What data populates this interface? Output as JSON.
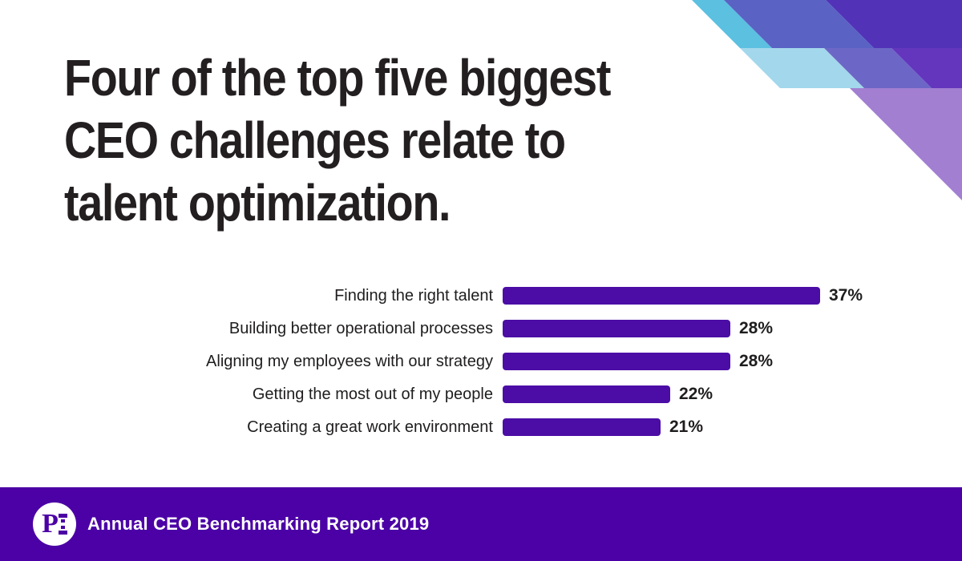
{
  "title": {
    "lines": [
      "Four of the top five biggest",
      "CEO challenges relate to",
      "talent optimization."
    ],
    "color": "#231f20"
  },
  "chart_data": {
    "type": "bar",
    "orientation": "horizontal",
    "title": "Four of the top five biggest CEO challenges relate to talent optimization.",
    "categories": [
      "Finding the right talent",
      "Building better operational processes",
      "Aligning my employees with our strategy",
      "Getting the most out of my people",
      "Creating a great work environment"
    ],
    "values": [
      37,
      28,
      28,
      22,
      21
    ],
    "value_labels": [
      "37%",
      "28%",
      "28%",
      "22%",
      "21%"
    ],
    "xlabel": "",
    "ylabel": "",
    "xlim": [
      0,
      40
    ],
    "grid": false,
    "legend": "none",
    "bar_color": "#4b0da5",
    "label_color": "#1f1d1e"
  },
  "footer": {
    "text": "Annual CEO Benchmarking Report 2019",
    "logo_text": "PI",
    "background": "#4b01a5",
    "text_color": "#ffffff"
  },
  "decoration": {
    "colors": {
      "cyan": "#5cc0e1",
      "blue": "#5a63c4",
      "dark_purple": "#5233b8",
      "light_blue": "#a3d7ec",
      "lavender": "#6c67c6",
      "mid_purple": "#6436bd",
      "lilac": "#a27fd1"
    }
  }
}
